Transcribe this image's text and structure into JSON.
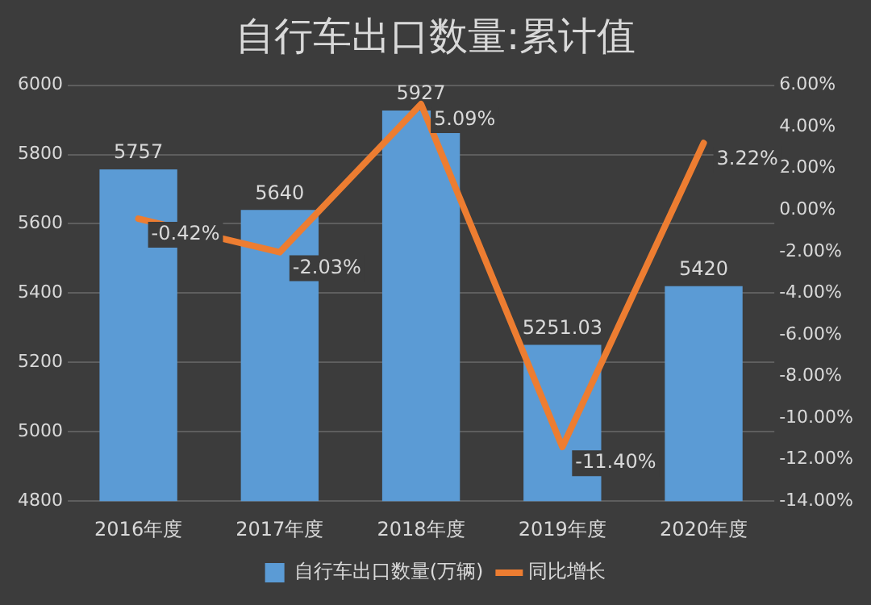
{
  "chart_data": {
    "type": "bar",
    "title": "自行车出口数量:累计值",
    "categories": [
      "2016年度",
      "2017年度",
      "2018年度",
      "2019年度",
      "2020年度"
    ],
    "series": [
      {
        "name": "自行车出口数量(万辆)",
        "color": "#5b9bd5",
        "values": [
          5757,
          5640,
          5927,
          5251.03,
          5420
        ],
        "value_labels": [
          "5757",
          "5640",
          "5927",
          "5251.03",
          "5420"
        ]
      },
      {
        "name": "同比增长",
        "type": "line",
        "axis": "y2",
        "color": "#ed7d31",
        "values": [
          -0.42,
          -2.03,
          5.09,
          -11.4,
          3.22
        ],
        "value_labels": [
          "-0.42%",
          "-2.03%",
          "5.09%",
          "-11.40%",
          "3.22%"
        ]
      }
    ],
    "ylim": [
      4800,
      6000
    ],
    "yticks": [
      4800,
      5000,
      5200,
      5400,
      5600,
      5800,
      6000
    ],
    "y2lim": [
      -14,
      6
    ],
    "y2ticks": [
      {
        "value": -14,
        "label": "-14.00%"
      },
      {
        "value": -12,
        "label": "-12.00%"
      },
      {
        "value": -10,
        "label": "-10.00%"
      },
      {
        "value": -8,
        "label": "-8.00%"
      },
      {
        "value": -6,
        "label": "-6.00%"
      },
      {
        "value": -4,
        "label": "-4.00%"
      },
      {
        "value": -2,
        "label": "-2.00%"
      },
      {
        "value": 0,
        "label": "0.00%"
      },
      {
        "value": 2,
        "label": "2.00%"
      },
      {
        "value": 4,
        "label": "4.00%"
      },
      {
        "value": 6,
        "label": "6.00%"
      }
    ],
    "grid": "y",
    "legend": "bottom",
    "marker": "none",
    "line_style": "solid"
  }
}
